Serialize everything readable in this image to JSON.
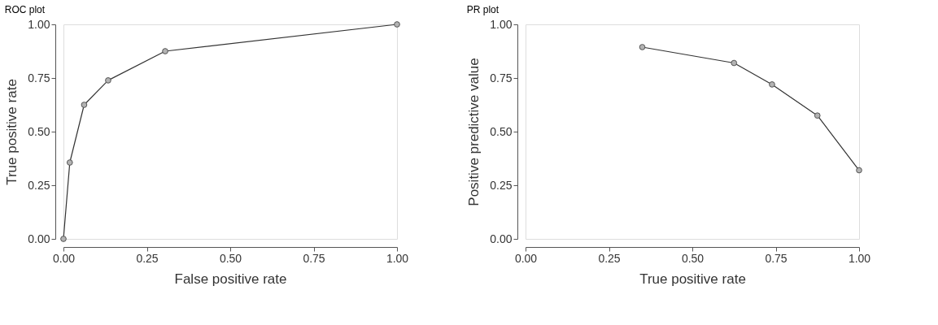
{
  "chart_data": [
    {
      "type": "line",
      "title": "ROC plot",
      "xlabel": "False positive rate",
      "ylabel": "True positive rate",
      "marker": "circle",
      "grid": false,
      "series": [
        {
          "color": "#b3b3b3",
          "x": [
            0,
            0.019,
            0.062,
            0.134,
            0.305,
            1
          ],
          "values": [
            0,
            0.356,
            0.625,
            0.739,
            0.875,
            1
          ]
        }
      ],
      "xlim": [
        0,
        1
      ],
      "ylim": [
        0,
        1
      ],
      "xticks": [
        {
          "value": 0,
          "label": "0.00"
        },
        {
          "value": 0.25,
          "label": "0.25"
        },
        {
          "value": 0.5,
          "label": "0.50"
        },
        {
          "value": 0.75,
          "label": "0.75"
        },
        {
          "value": 1,
          "label": "1.00"
        }
      ],
      "yticks": [
        {
          "value": 0,
          "label": "0.00"
        },
        {
          "value": 0.25,
          "label": "0.25"
        },
        {
          "value": 0.5,
          "label": "0.50"
        },
        {
          "value": 0.75,
          "label": "0.75"
        },
        {
          "value": 1,
          "label": "1.00"
        }
      ]
    },
    {
      "type": "line",
      "title": "PR plot",
      "xlabel": "True positive rate",
      "ylabel": "Positive predictive value",
      "marker": "circle",
      "grid": false,
      "series": [
        {
          "color": "#b3b3b3",
          "x": [
            0.35,
            0.625,
            0.739,
            0.875,
            1
          ],
          "values": [
            0.894,
            0.82,
            0.72,
            0.575,
            0.32
          ]
        }
      ],
      "xlim": [
        0,
        1
      ],
      "ylim": [
        0,
        1
      ],
      "xticks": [
        {
          "value": 0,
          "label": "0.00"
        },
        {
          "value": 0.25,
          "label": "0.25"
        },
        {
          "value": 0.5,
          "label": "0.50"
        },
        {
          "value": 0.75,
          "label": "0.75"
        },
        {
          "value": 1,
          "label": "1.00"
        }
      ],
      "yticks": [
        {
          "value": 0,
          "label": "0.00"
        },
        {
          "value": 0.25,
          "label": "0.25"
        },
        {
          "value": 0.5,
          "label": "0.50"
        },
        {
          "value": 0.75,
          "label": "0.75"
        },
        {
          "value": 1,
          "label": "1.00"
        }
      ]
    }
  ]
}
